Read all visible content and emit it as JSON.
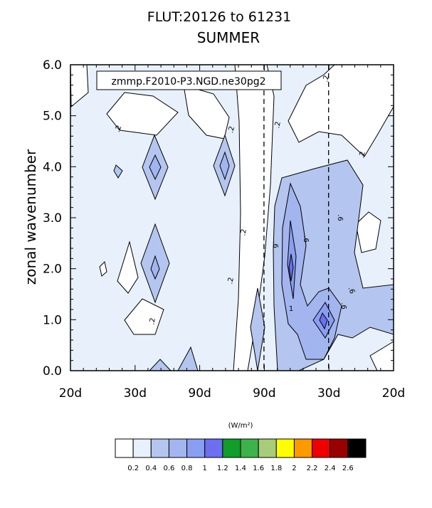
{
  "chart_data": {
    "type": "heatmap",
    "title": "FLUT:20126 to 61231",
    "subtitle": "SUMMER",
    "annotation": "zmmp.F2010-P3.NGD.ne30pg2",
    "ylabel": "zonal wavenumber",
    "xlabel": "",
    "ylim": [
      0,
      6
    ],
    "y_ticks": [
      "0.0",
      "1.0",
      "2.0",
      "3.0",
      "4.0",
      "5.0",
      "6.0"
    ],
    "x_ticks": [
      "20d",
      "30d",
      "90d",
      "90d",
      "30d",
      "20d"
    ],
    "x_values": [
      -0.05,
      -0.0333,
      -0.0111,
      0.0111,
      0.0333,
      0.05
    ],
    "dashed_reference_lines": [
      "90d",
      "30d"
    ],
    "contour_labels": [
      ".2",
      ".2",
      ".2",
      ".2",
      ".2",
      ".2",
      ".2",
      ".2",
      ".6",
      ".6",
      ".6",
      ".6",
      ".6",
      "1"
    ],
    "colorbar": {
      "units": "(W/m²)",
      "levels": [
        "0.2",
        "0.4",
        "0.6",
        "0.8",
        "1",
        "1.2",
        "1.4",
        "1.6",
        "1.8",
        "2",
        "2.2",
        "2.4",
        "2.6"
      ],
      "colors": [
        "#ffffff",
        "#e8f1fb",
        "#b4c5ef",
        "#a2b5ef",
        "#8a9ef1",
        "#6b6ff0",
        "#109d2a",
        "#3db24a",
        "#a9cc7a",
        "#ffff00",
        "#ff9900",
        "#ee0000",
        "#990000",
        "#000000"
      ]
    }
  }
}
